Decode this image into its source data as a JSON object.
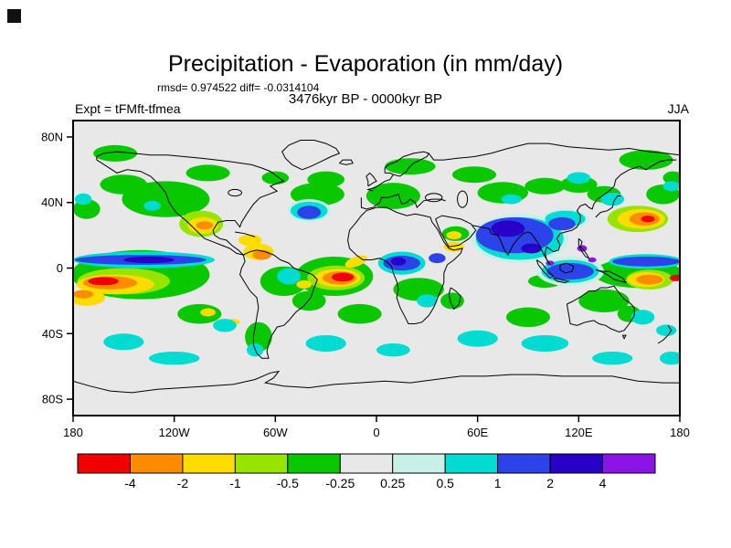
{
  "chart_data": {
    "type": "heatmap",
    "projection": "equirectangular world map",
    "lon_range": [
      -180,
      180
    ],
    "lat_range": [
      -90,
      90
    ],
    "title": "Precipitation - Evaporation (in mm/day)",
    "stats_text": "rmsd= 0.974522 diff= -0.0314104",
    "rmsd": 0.974522,
    "diff": -0.0314104,
    "subtitle": "3476kyr BP - 0000kyr BP",
    "experiment_label": "Expt = tFMft-tfmea",
    "season": "JJA",
    "units": "mm/day",
    "background_level_color": "#e8e8e8",
    "axes": {
      "lat_ticks": [
        {
          "deg": 80,
          "label": "80N"
        },
        {
          "deg": 40,
          "label": "40N"
        },
        {
          "deg": 0,
          "label": "0"
        },
        {
          "deg": -40,
          "label": "40S"
        },
        {
          "deg": -80,
          "label": "80S"
        }
      ],
      "lon_ticks": [
        {
          "deg": -180,
          "label": "180"
        },
        {
          "deg": -120,
          "label": "120W"
        },
        {
          "deg": -60,
          "label": "60W"
        },
        {
          "deg": 0,
          "label": "0"
        },
        {
          "deg": 60,
          "label": "60E"
        },
        {
          "deg": 120,
          "label": "120E"
        },
        {
          "deg": 180,
          "label": "180"
        }
      ]
    },
    "colorbar": {
      "boundary_labels": [
        "-4",
        "-2",
        "-1",
        "-0.5",
        "-0.25",
        "0.25",
        "0.5",
        "1",
        "2",
        "4"
      ],
      "segment_colors": [
        "#f00000",
        "#ff8c00",
        "#ffdc00",
        "#96e400",
        "#0ac800",
        "#e8e8e8",
        "#c8f0e8",
        "#00dcd2",
        "#2b43e8",
        "#2800c8",
        "#8c14e6"
      ],
      "segment_ranges": [
        "< -4",
        "-4 to -2",
        "-2 to -1",
        "-1 to -0.5",
        "-0.5 to -0.25",
        "-0.25 to 0.25",
        "0.25 to 0.5",
        "0.5 to 1",
        "1 to 2",
        "2 to 4",
        "> 4"
      ]
    },
    "anomaly_regions_format": "[lon_center_deg, lat_center_deg, width_deg, height_deg, rotation_deg, color_index_into_colorbar_segment_colors]",
    "anomaly_regions": [
      [
        -125,
        42,
        52,
        22,
        0,
        4
      ],
      [
        -150,
        51,
        28,
        12,
        0,
        4
      ],
      [
        -172,
        36,
        16,
        12,
        0,
        4
      ],
      [
        -155,
        70,
        26,
        10,
        0,
        4
      ],
      [
        -100,
        58,
        26,
        10,
        0,
        4
      ],
      [
        -60,
        55,
        16,
        8,
        0,
        4
      ],
      [
        -30,
        54,
        22,
        10,
        0,
        4
      ],
      [
        20,
        62,
        30,
        10,
        0,
        4
      ],
      [
        58,
        57,
        26,
        10,
        0,
        4
      ],
      [
        160,
        66,
        32,
        12,
        0,
        4
      ],
      [
        176,
        55,
        12,
        8,
        0,
        4
      ],
      [
        120,
        51,
        22,
        10,
        0,
        4
      ],
      [
        -35,
        45,
        32,
        14,
        0,
        4
      ],
      [
        10,
        44,
        32,
        16,
        0,
        4
      ],
      [
        -140,
        -4,
        82,
        30,
        0,
        4
      ],
      [
        155,
        -3,
        52,
        18,
        0,
        4
      ],
      [
        -55,
        -8,
        28,
        18,
        0,
        4
      ],
      [
        -40,
        -20,
        20,
        12,
        0,
        4
      ],
      [
        -70,
        -42,
        16,
        18,
        0,
        4
      ],
      [
        -25,
        -5,
        46,
        24,
        0,
        4
      ],
      [
        25,
        -13,
        30,
        14,
        0,
        4
      ],
      [
        45,
        -20,
        14,
        10,
        0,
        4
      ],
      [
        47,
        21,
        16,
        9,
        0,
        4
      ],
      [
        75,
        46,
        30,
        13,
        0,
        4
      ],
      [
        100,
        50,
        24,
        10,
        0,
        4
      ],
      [
        135,
        45,
        20,
        10,
        0,
        4
      ],
      [
        170,
        45,
        20,
        12,
        0,
        4
      ],
      [
        135,
        -20,
        30,
        14,
        0,
        4
      ],
      [
        150,
        -28,
        14,
        10,
        0,
        4
      ],
      [
        90,
        -30,
        26,
        12,
        0,
        4
      ],
      [
        -10,
        -28,
        26,
        12,
        0,
        4
      ],
      [
        -105,
        -28,
        26,
        12,
        0,
        4
      ],
      [
        100,
        -8,
        20,
        8,
        0,
        4
      ],
      [
        -104,
        27,
        26,
        16,
        0,
        3
      ],
      [
        -150,
        -8,
        55,
        16,
        0,
        3
      ],
      [
        -24,
        -6,
        34,
        15,
        0,
        3
      ],
      [
        155,
        30,
        36,
        16,
        0,
        3
      ],
      [
        162,
        -7,
        28,
        12,
        0,
        3
      ],
      [
        85,
        18,
        58,
        30,
        0,
        6
      ],
      [
        -40,
        35,
        26,
        14,
        0,
        6
      ],
      [
        115,
        -2,
        40,
        18,
        0,
        6
      ],
      [
        112,
        30,
        28,
        12,
        0,
        6
      ],
      [
        -103,
        26,
        18,
        10,
        0,
        2
      ],
      [
        -70,
        10,
        18,
        10,
        0,
        2
      ],
      [
        -75,
        17,
        14,
        7,
        0,
        2
      ],
      [
        -155,
        -10,
        46,
        12,
        0,
        2
      ],
      [
        -172,
        -18,
        22,
        10,
        0,
        2
      ],
      [
        -23,
        -6,
        27,
        11,
        0,
        2
      ],
      [
        -12,
        4,
        14,
        6,
        -20,
        2
      ],
      [
        157,
        30,
        28,
        12,
        0,
        2
      ],
      [
        160,
        -7,
        22,
        9,
        0,
        2
      ],
      [
        46,
        20,
        9,
        5,
        0,
        2
      ],
      [
        46,
        13,
        12,
        6,
        0,
        2
      ],
      [
        -100,
        -27,
        9,
        5,
        0,
        2
      ],
      [
        -85,
        -33,
        8,
        4,
        0,
        2
      ],
      [
        -43,
        -10,
        9,
        5,
        0,
        2
      ],
      [
        -133,
        38,
        10,
        6,
        0,
        7
      ],
      [
        -174,
        42,
        10,
        7,
        0,
        7
      ],
      [
        120,
        55,
        14,
        7,
        0,
        7
      ],
      [
        -40,
        35,
        22,
        11,
        0,
        7
      ],
      [
        -52,
        -5,
        14,
        10,
        0,
        7
      ],
      [
        -72,
        -50,
        10,
        8,
        0,
        7
      ],
      [
        -90,
        -35,
        14,
        8,
        0,
        7
      ],
      [
        30,
        -20,
        12,
        8,
        0,
        7
      ],
      [
        85,
        18,
        52,
        26,
        0,
        7
      ],
      [
        115,
        -2,
        34,
        14,
        0,
        7
      ],
      [
        112,
        30,
        24,
        10,
        0,
        7
      ],
      [
        140,
        42,
        14,
        8,
        0,
        7
      ],
      [
        158,
        -30,
        14,
        9,
        0,
        7
      ],
      [
        172,
        -38,
        12,
        7,
        0,
        7
      ],
      [
        -150,
        -45,
        24,
        10,
        0,
        7
      ],
      [
        -120,
        -55,
        30,
        8,
        0,
        7
      ],
      [
        -30,
        -46,
        24,
        10,
        0,
        7
      ],
      [
        10,
        -50,
        20,
        8,
        0,
        7
      ],
      [
        60,
        -43,
        24,
        10,
        0,
        7
      ],
      [
        100,
        -46,
        28,
        10,
        0,
        7
      ],
      [
        140,
        -55,
        24,
        8,
        0,
        7
      ],
      [
        175,
        -55,
        14,
        8,
        0,
        7
      ],
      [
        -138,
        5,
        84,
        10,
        0,
        7
      ],
      [
        160,
        4,
        44,
        9,
        0,
        7
      ],
      [
        15,
        3,
        28,
        14,
        0,
        7
      ],
      [
        175,
        50,
        10,
        6,
        0,
        7
      ],
      [
        80,
        42,
        12,
        6,
        0,
        7
      ],
      [
        -102,
        26,
        10,
        5,
        0,
        1
      ],
      [
        -68,
        8,
        11,
        6,
        0,
        1
      ],
      [
        -158,
        -9,
        32,
        8,
        0,
        1
      ],
      [
        -174,
        -16,
        12,
        5,
        0,
        1
      ],
      [
        -22,
        -6,
        20,
        8,
        0,
        1
      ],
      [
        159,
        30,
        18,
        8,
        0,
        1
      ],
      [
        162,
        -7,
        16,
        6,
        0,
        1
      ],
      [
        -140,
        5,
        78,
        6,
        0,
        8
      ],
      [
        160,
        4,
        40,
        6,
        0,
        8
      ],
      [
        -40,
        34,
        14,
        8,
        0,
        8
      ],
      [
        15,
        3,
        22,
        9,
        0,
        8
      ],
      [
        36,
        6,
        10,
        6,
        0,
        8
      ],
      [
        82,
        20,
        46,
        22,
        0,
        8
      ],
      [
        115,
        -2,
        28,
        10,
        0,
        8
      ],
      [
        110,
        27,
        16,
        8,
        0,
        8
      ],
      [
        -162,
        -8,
        18,
        5,
        0,
        0
      ],
      [
        -20,
        -5.5,
        13,
        5.5,
        0,
        0
      ],
      [
        161,
        30,
        8,
        4,
        0,
        0
      ],
      [
        178,
        -6,
        8,
        4,
        0,
        0
      ],
      [
        78,
        24,
        20,
        10,
        0,
        9
      ],
      [
        92,
        12,
        12,
        6,
        0,
        9
      ],
      [
        13,
        4,
        9,
        5,
        0,
        9
      ],
      [
        -135,
        5,
        30,
        4,
        0,
        9
      ],
      [
        122,
        12,
        6,
        4,
        0,
        10
      ],
      [
        103,
        3,
        5,
        3,
        0,
        10
      ],
      [
        128,
        5,
        5,
        3,
        0,
        10
      ]
    ]
  }
}
